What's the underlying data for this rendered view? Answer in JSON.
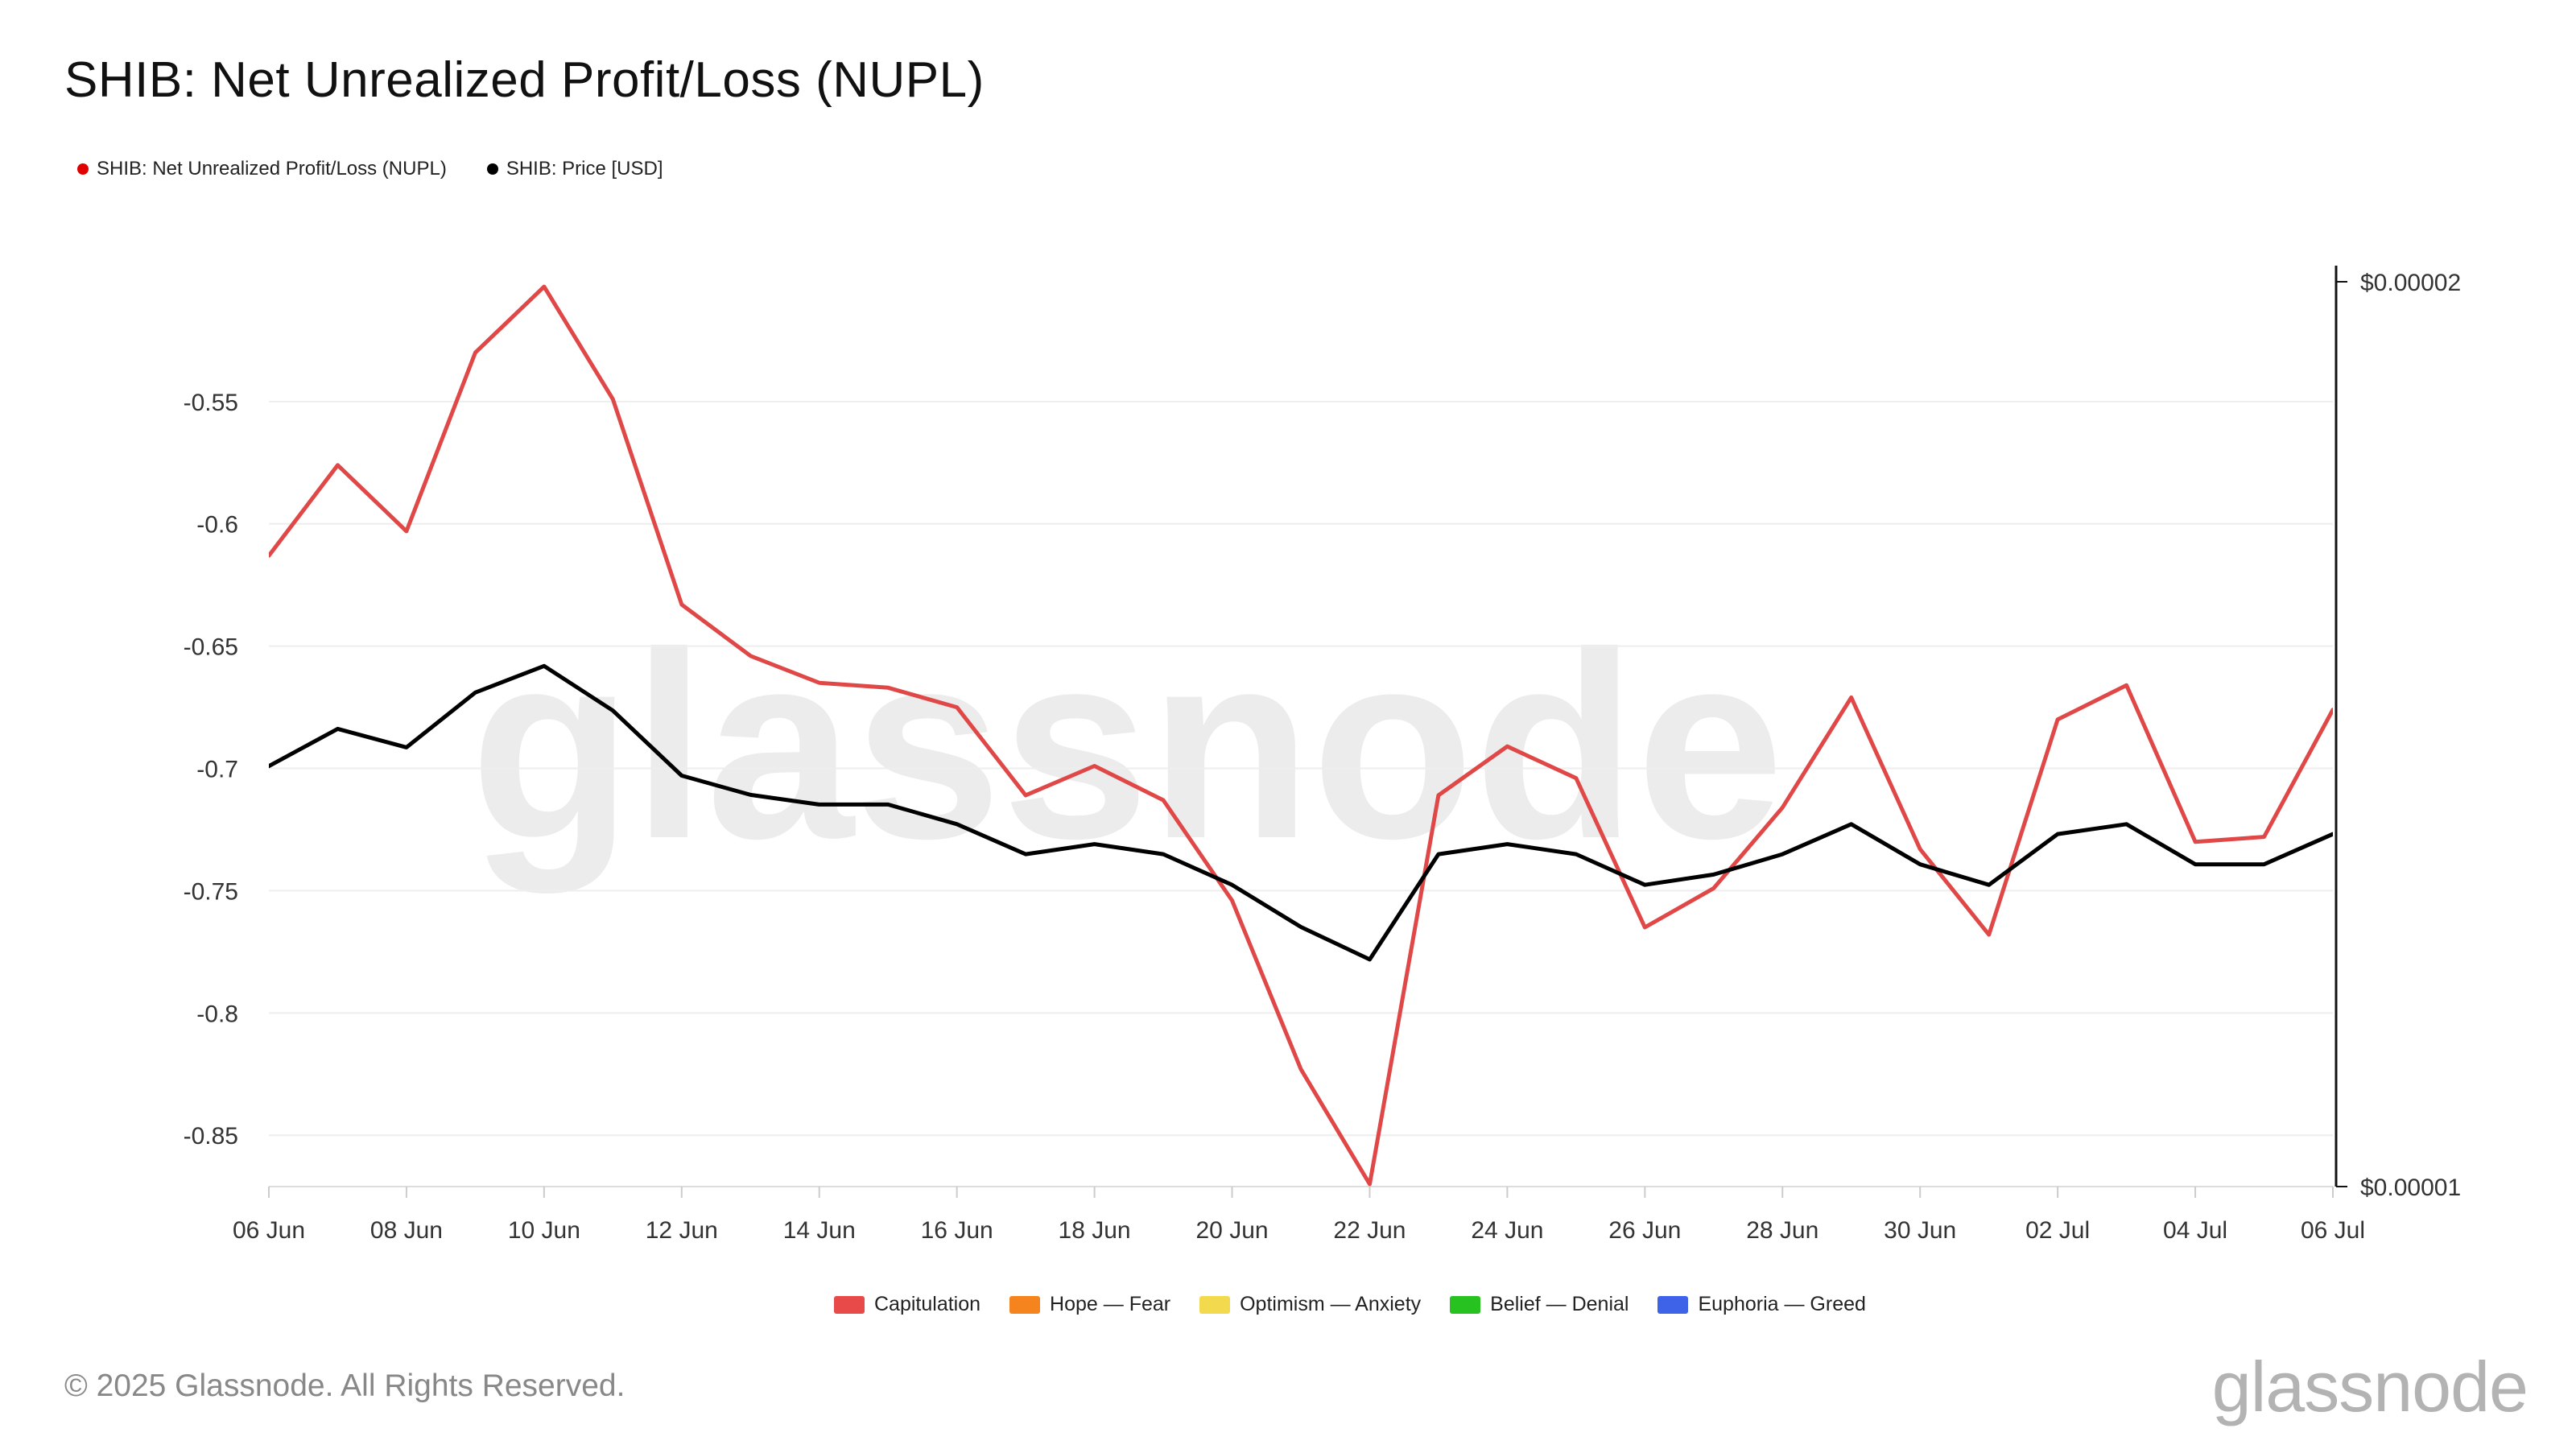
{
  "title": "SHIB: Net Unrealized Profit/Loss (NUPL)",
  "legend": [
    {
      "label": "SHIB: Net Unrealized Profit/Loss (NUPL)",
      "color": "#e00000"
    },
    {
      "label": "SHIB: Price [USD]",
      "color": "#000000"
    }
  ],
  "zones": [
    {
      "label": "Capitulation",
      "color": "#e84a4a"
    },
    {
      "label": "Hope — Fear",
      "color": "#f5841f"
    },
    {
      "label": "Optimism — Anxiety",
      "color": "#f2d94e"
    },
    {
      "label": "Belief — Denial",
      "color": "#27c21f"
    },
    {
      "label": "Euphoria — Greed",
      "color": "#3f63e8"
    }
  ],
  "watermark": "glassnode",
  "copyright": "© 2025 Glassnode. All Rights Reserved.",
  "brand": "glassnode",
  "chart_data": {
    "type": "line",
    "x_ticks": [
      "06 Jun",
      "08 Jun",
      "10 Jun",
      "12 Jun",
      "14 Jun",
      "16 Jun",
      "18 Jun",
      "20 Jun",
      "22 Jun",
      "24 Jun",
      "26 Jun",
      "28 Jun",
      "30 Jun",
      "02 Jul",
      "04 Jul",
      "06 Jul"
    ],
    "x": [
      "06 Jun",
      "07 Jun",
      "08 Jun",
      "09 Jun",
      "10 Jun",
      "11 Jun",
      "12 Jun",
      "13 Jun",
      "14 Jun",
      "15 Jun",
      "16 Jun",
      "17 Jun",
      "18 Jun",
      "19 Jun",
      "20 Jun",
      "21 Jun",
      "22 Jun",
      "23 Jun",
      "24 Jun",
      "25 Jun",
      "26 Jun",
      "27 Jun",
      "28 Jun",
      "29 Jun",
      "30 Jun",
      "01 Jul",
      "02 Jul",
      "03 Jul",
      "04 Jul",
      "05 Jul",
      "06 Jul"
    ],
    "y_left": {
      "ticks": [
        "-0.55",
        "-0.6",
        "-0.65",
        "-0.7",
        "-0.75",
        "-0.8",
        "-0.85"
      ],
      "tick_values": [
        -0.55,
        -0.6,
        -0.65,
        -0.7,
        -0.75,
        -0.8,
        -0.85
      ],
      "range": [
        -0.871,
        -0.501
      ]
    },
    "y_right": {
      "ticks": [
        "$0.00002",
        "$0.00001"
      ],
      "tick_values": [
        2e-05,
        1e-05
      ],
      "range": [
        1e-05,
        2e-05
      ],
      "scale": "log"
    },
    "grid": true,
    "series": [
      {
        "name": "SHIB: Net Unrealized Profit/Loss (NUPL)",
        "axis": "left",
        "color": "#e04848",
        "values": [
          -0.613,
          -0.576,
          -0.603,
          -0.53,
          -0.503,
          -0.549,
          -0.633,
          -0.654,
          -0.665,
          -0.667,
          -0.675,
          -0.711,
          -0.699,
          -0.713,
          -0.754,
          -0.823,
          -0.87,
          -0.711,
          -0.691,
          -0.704,
          -0.765,
          -0.749,
          -0.716,
          -0.671,
          -0.733,
          -0.768,
          -0.68,
          -0.666,
          -0.73,
          -0.728,
          -0.676
        ]
      },
      {
        "name": "SHIB: Price [USD]",
        "axis": "right",
        "color": "#000000",
        "values": [
          1.38e-05,
          1.42e-05,
          1.4e-05,
          1.46e-05,
          1.49e-05,
          1.44e-05,
          1.37e-05,
          1.35e-05,
          1.34e-05,
          1.34e-05,
          1.32e-05,
          1.29e-05,
          1.3e-05,
          1.29e-05,
          1.26e-05,
          1.22e-05,
          1.19e-05,
          1.29e-05,
          1.3e-05,
          1.29e-05,
          1.26e-05,
          1.27e-05,
          1.29e-05,
          1.32e-05,
          1.28e-05,
          1.26e-05,
          1.31e-05,
          1.32e-05,
          1.28e-05,
          1.28e-05,
          1.31e-05
        ]
      }
    ]
  }
}
